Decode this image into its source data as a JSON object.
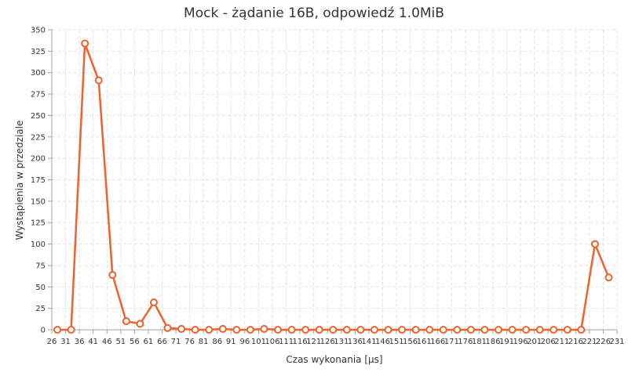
{
  "chart_data": {
    "type": "line",
    "title": "Mock - żądanie 16B, odpowiedź 1.0MiB",
    "xlabel": "Czas wykonania [µs]",
    "ylabel": "Wystąpienia w przedziale",
    "xlim": [
      26,
      231
    ],
    "ylim": [
      0,
      350
    ],
    "x_ticks": [
      26,
      31,
      36,
      41,
      46,
      51,
      56,
      61,
      66,
      71,
      76,
      81,
      86,
      91,
      96,
      101,
      106,
      111,
      116,
      121,
      126,
      131,
      136,
      141,
      146,
      151,
      156,
      161,
      166,
      171,
      176,
      181,
      186,
      191,
      196,
      201,
      206,
      211,
      216,
      221,
      226,
      231
    ],
    "y_ticks": [
      0,
      25,
      50,
      75,
      100,
      125,
      150,
      175,
      200,
      225,
      250,
      275,
      300,
      325,
      350
    ],
    "grid": true,
    "legend": "none",
    "series": [
      {
        "color": "#f0612e",
        "x": [
          28,
          33,
          38,
          43,
          48,
          53,
          58,
          63,
          68,
          73,
          78,
          83,
          88,
          93,
          98,
          103,
          108,
          113,
          118,
          123,
          128,
          133,
          138,
          143,
          148,
          153,
          158,
          163,
          168,
          173,
          178,
          183,
          188,
          193,
          198,
          203,
          208,
          213,
          218,
          223,
          228
        ],
        "values": [
          0,
          0,
          334,
          291,
          64,
          10,
          7,
          32,
          2,
          1,
          0,
          0,
          1,
          0,
          0,
          1,
          0,
          0,
          0,
          0,
          0,
          0,
          0,
          0,
          0,
          0,
          0,
          0,
          0,
          0,
          0,
          0,
          0,
          0,
          0,
          0,
          0,
          0,
          0,
          100,
          61
        ]
      }
    ]
  }
}
